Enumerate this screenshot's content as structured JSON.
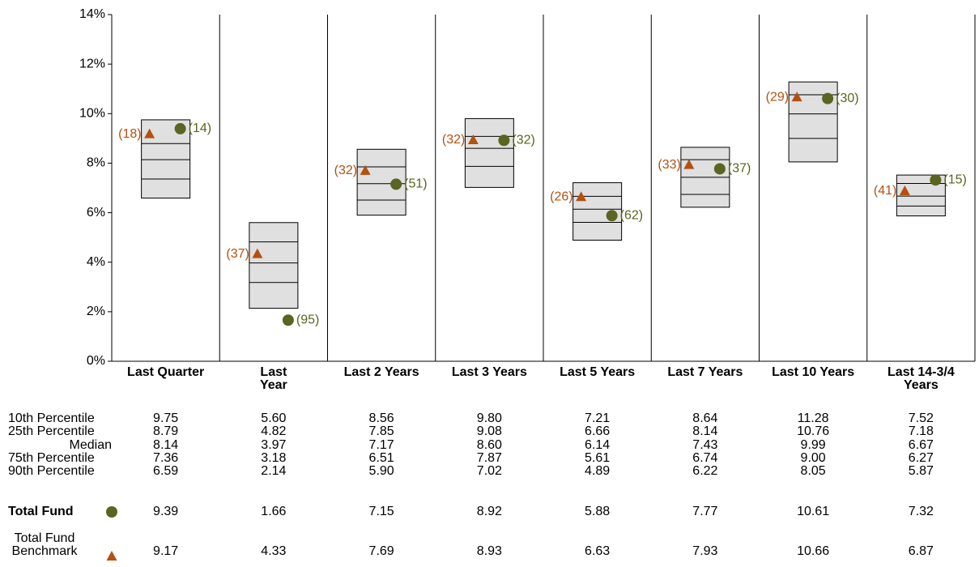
{
  "chart_data": {
    "type": "floating_box",
    "categories": [
      "Last Quarter",
      "Last\nYear",
      "Last 2 Years",
      "Last 3 Years",
      "Last 5 Years",
      "Last 7 Years",
      "Last 10 Years",
      "Last 14-3/4\nYears"
    ],
    "ylim": [
      0,
      14
    ],
    "yticks": [
      {
        "value": 0,
        "label": "0%"
      },
      {
        "value": 2,
        "label": "2%"
      },
      {
        "value": 4,
        "label": "4%"
      },
      {
        "value": 6,
        "label": "6%"
      },
      {
        "value": 8,
        "label": "8%"
      },
      {
        "value": 10,
        "label": "10%"
      },
      {
        "value": 12,
        "label": "12%"
      },
      {
        "value": 14,
        "label": "14%"
      }
    ],
    "box_color": "#e0e0e0",
    "percentiles": [
      {
        "name": "10th Percentile",
        "values": [
          9.75,
          5.6,
          8.56,
          9.8,
          7.21,
          8.64,
          11.28,
          7.52
        ],
        "value_labels": [
          "9.75",
          "5.60",
          "8.56",
          "9.80",
          "7.21",
          "8.64",
          "11.28",
          "7.52"
        ]
      },
      {
        "name": "25th Percentile",
        "values": [
          8.79,
          4.82,
          7.85,
          9.08,
          6.66,
          8.14,
          10.76,
          7.18
        ],
        "value_labels": [
          "8.79",
          "4.82",
          "7.85",
          "9.08",
          "6.66",
          "8.14",
          "10.76",
          "7.18"
        ]
      },
      {
        "name": "Median",
        "values": [
          8.14,
          3.97,
          7.17,
          8.6,
          6.14,
          7.43,
          9.99,
          6.67
        ],
        "value_labels": [
          "8.14",
          "3.97",
          "7.17",
          "8.60",
          "6.14",
          "7.43",
          "9.99",
          "6.67"
        ]
      },
      {
        "name": "75th Percentile",
        "values": [
          7.36,
          3.18,
          6.51,
          7.87,
          5.61,
          6.74,
          9.0,
          6.27
        ],
        "value_labels": [
          "7.36",
          "3.18",
          "6.51",
          "7.87",
          "5.61",
          "6.74",
          "9.00",
          "6.27"
        ]
      },
      {
        "name": "90th Percentile",
        "values": [
          6.59,
          2.14,
          5.9,
          7.02,
          4.89,
          6.22,
          8.05,
          5.87
        ],
        "value_labels": [
          "6.59",
          "2.14",
          "5.90",
          "7.02",
          "4.89",
          "6.22",
          "8.05",
          "5.87"
        ]
      }
    ],
    "series": [
      {
        "name": "Total Fund",
        "marker": "circle",
        "color": "#5b6420",
        "values": [
          9.39,
          1.66,
          7.15,
          8.92,
          5.88,
          7.77,
          10.61,
          7.32
        ],
        "value_labels": [
          "9.39",
          "1.66",
          "7.15",
          "8.92",
          "5.88",
          "7.77",
          "10.61",
          "7.32"
        ],
        "rank_labels": [
          "(14)",
          "(95)",
          "(51)",
          "(32)",
          "(62)",
          "(37)",
          "(30)",
          "(15)"
        ]
      },
      {
        "name": "Total Fund\nBenchmark",
        "marker": "triangle",
        "color": "#b5500f",
        "values": [
          9.17,
          4.33,
          7.69,
          8.93,
          6.63,
          7.93,
          10.66,
          6.87
        ],
        "value_labels": [
          "9.17",
          "4.33",
          "7.69",
          "8.93",
          "6.63",
          "7.93",
          "10.66",
          "6.87"
        ],
        "rank_labels": [
          "(18)",
          "(37)",
          "(32)",
          "(32)",
          "(26)",
          "(33)",
          "(29)",
          "(41)"
        ]
      }
    ]
  }
}
